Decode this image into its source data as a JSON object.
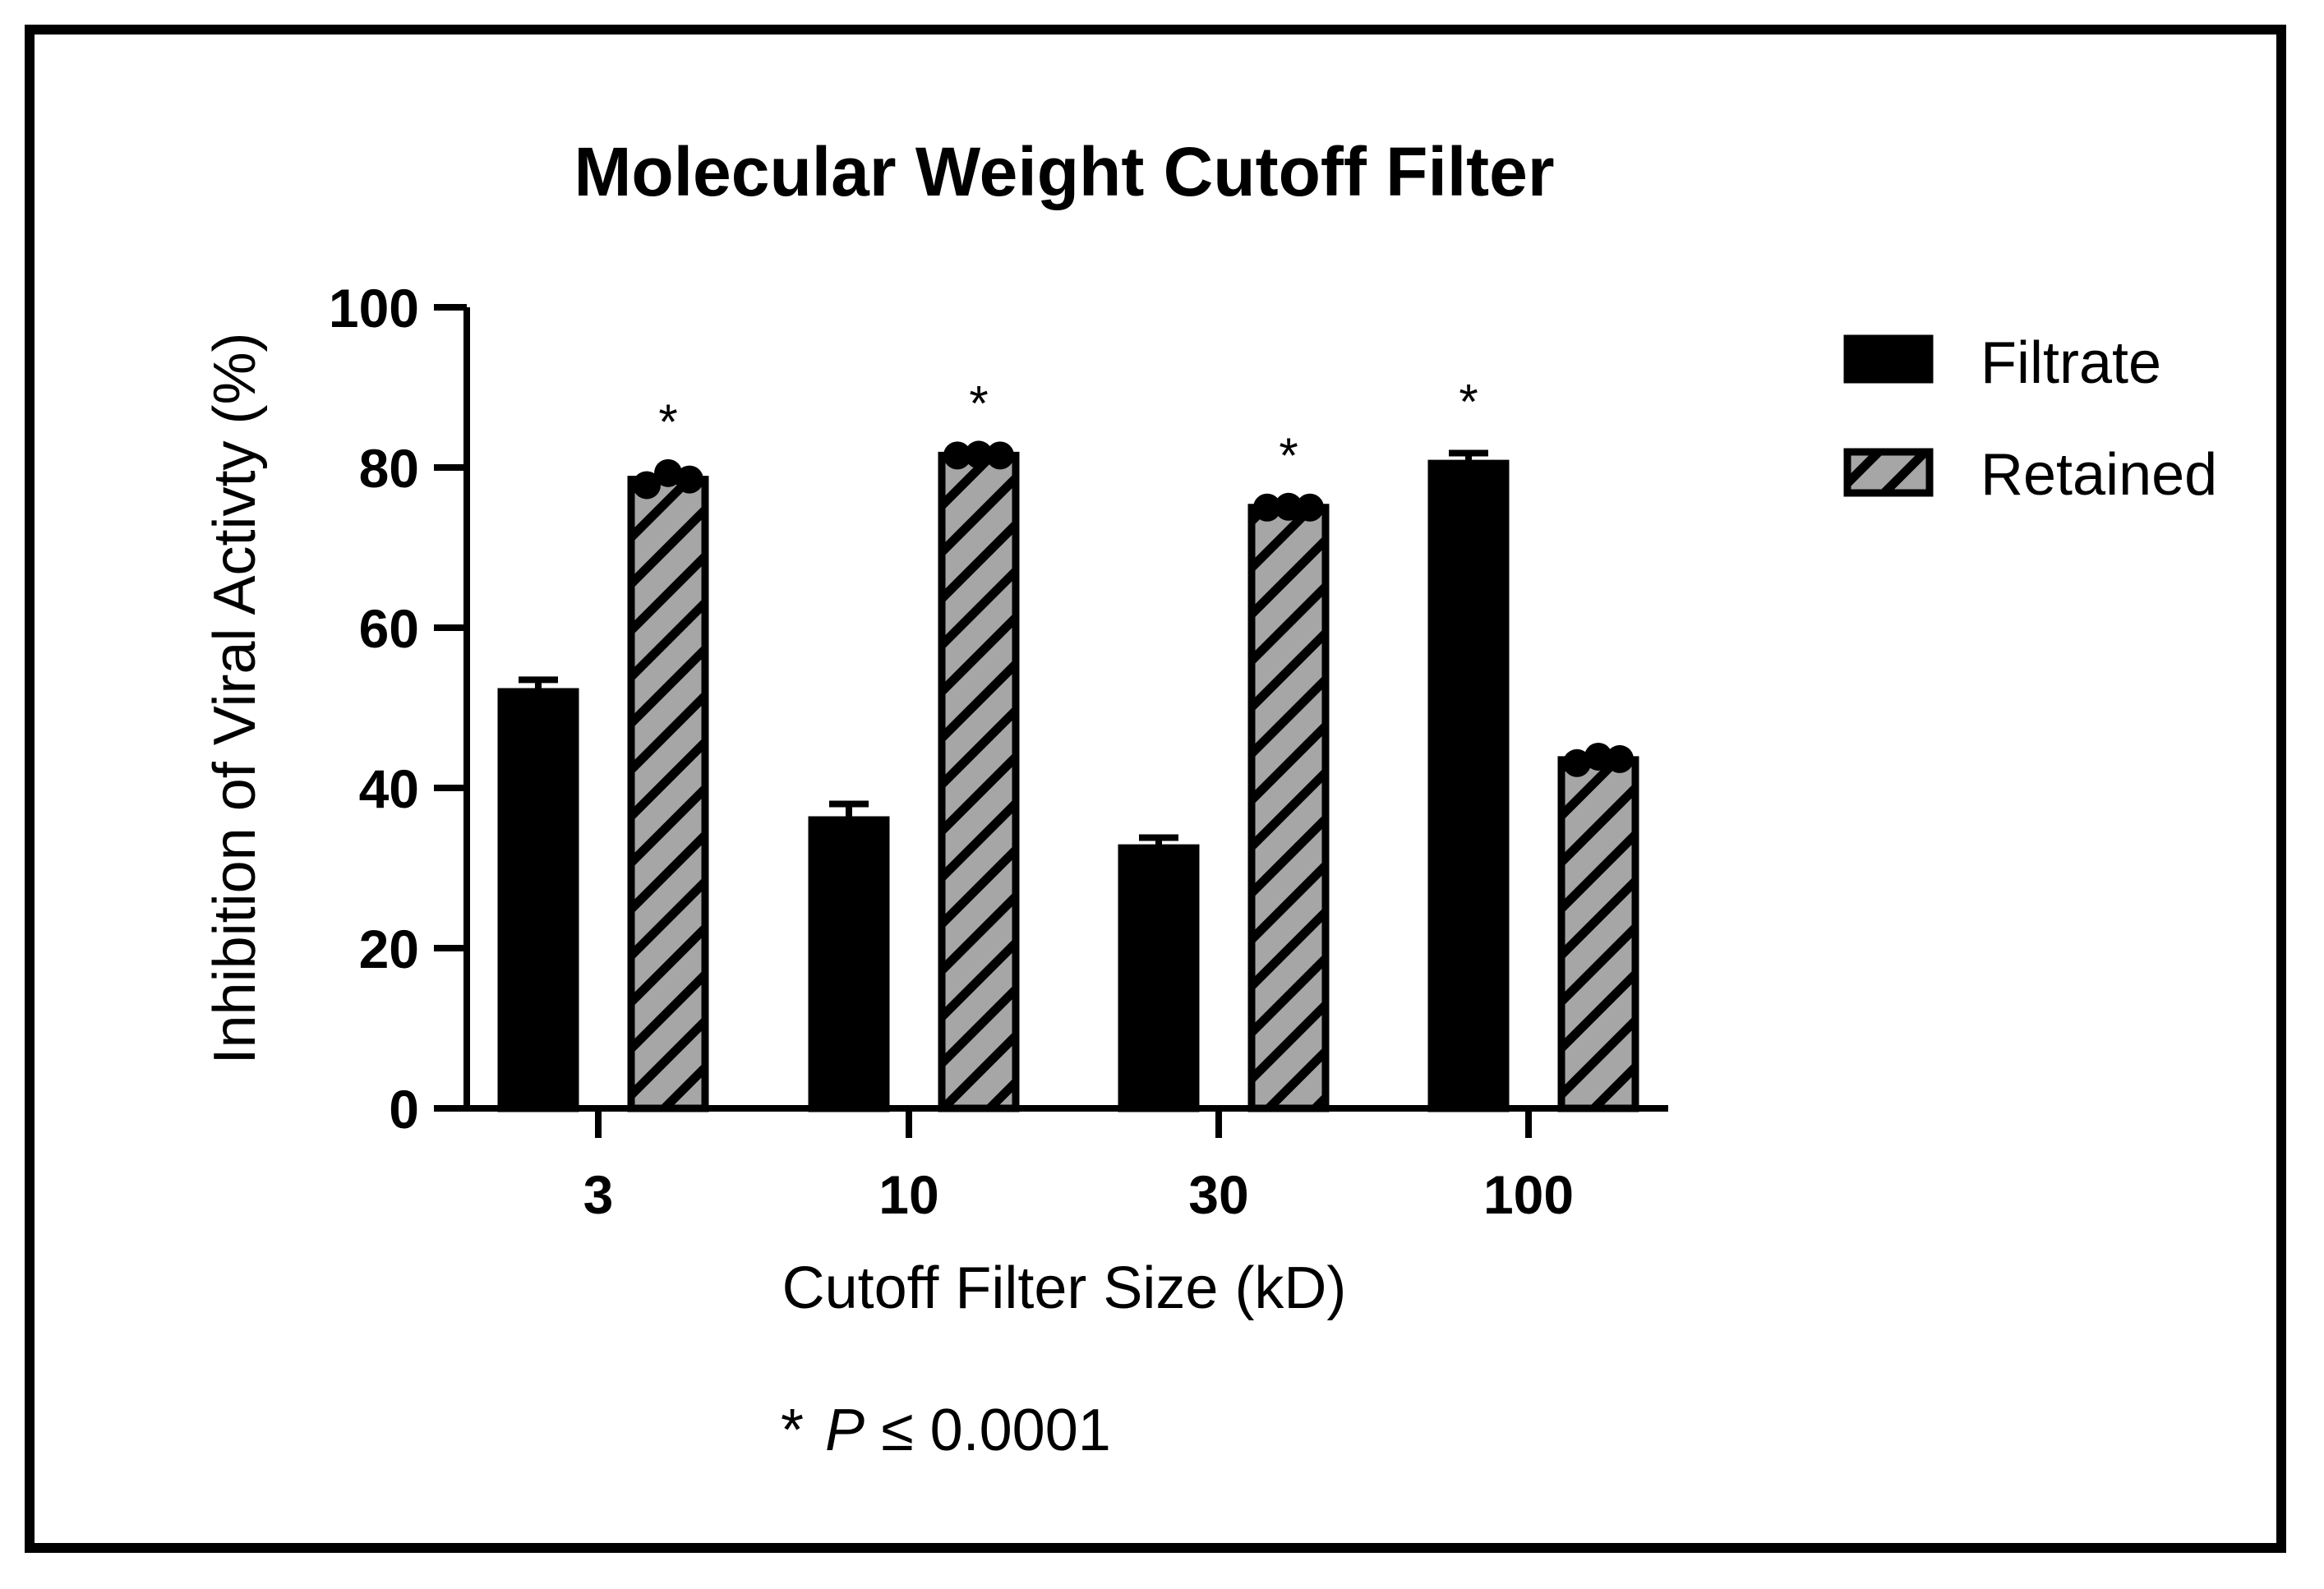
{
  "chart_data": {
    "type": "bar",
    "title": "Molecular Weight Cutoff Filter",
    "xlabel": "Cutoff Filter Size (kD)",
    "ylabel": "Inhibition of Viral Activty (%)",
    "ylim": [
      0,
      100
    ],
    "yticks": [
      "0",
      "20",
      "40",
      "60",
      "80",
      "100"
    ],
    "categories": [
      "3",
      "10",
      "30",
      "100"
    ],
    "series": [
      {
        "name": "Filtrate",
        "color": "#000000",
        "pattern": "solid",
        "values": [
          52,
          36,
          32.5,
          80.5
        ],
        "errors": [
          1.5,
          2,
          1.3,
          1.3
        ],
        "points": [],
        "significant": [
          false,
          false,
          false,
          true
        ]
      },
      {
        "name": "Retained",
        "color": "#a6a6a6",
        "pattern": "hatch",
        "values": [
          78.5,
          81.5,
          75,
          43.5
        ],
        "errors": [
          0,
          0,
          0,
          0
        ],
        "points": [
          [
            77.8,
            79.3,
            78.5
          ],
          [
            81.5,
            81.6,
            81.5
          ],
          [
            75,
            75.1,
            75
          ],
          [
            43.1,
            43.9,
            43.6
          ]
        ],
        "significant": [
          true,
          true,
          true,
          false
        ]
      }
    ],
    "significance_marker": "*",
    "legend_position": "top-right",
    "grid": false
  },
  "footnote": {
    "star": "*",
    "p": "P",
    "text": "≤ 0.0001"
  }
}
